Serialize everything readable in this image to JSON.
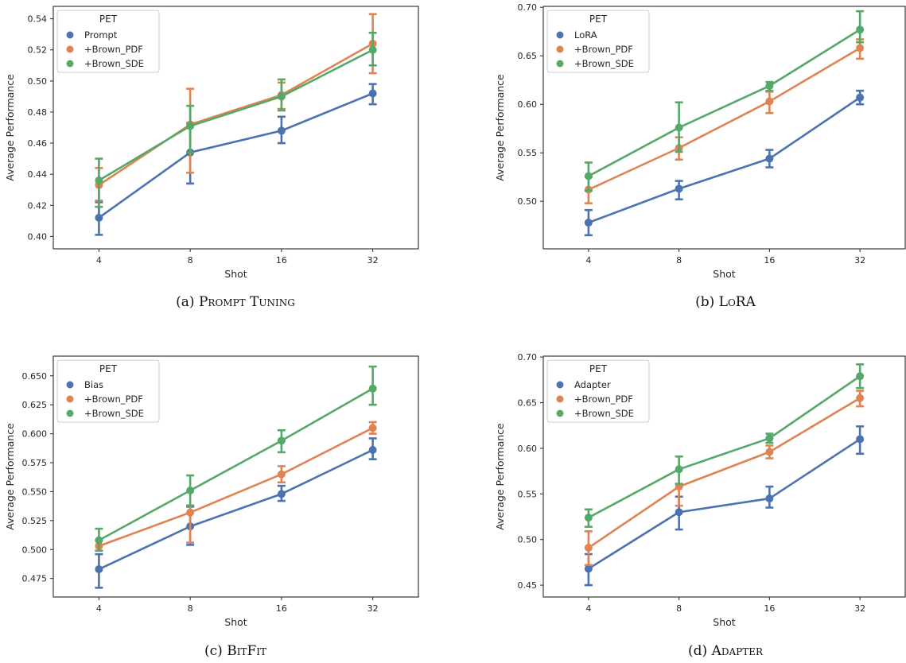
{
  "colors": {
    "Prompt": "#4c72b0",
    "+Brown_PDF": "#dd8452",
    "+Brown_SDE": "#55a868"
  },
  "chart_data": [
    {
      "type": "line",
      "caption": {
        "prefix": "(a) ",
        "name": "Prompt Tuning"
      },
      "categories": [
        "4",
        "8",
        "16",
        "32"
      ],
      "xlabel": "Shot",
      "ylabel": "Average Performance",
      "ylim": [
        0.392,
        0.548
      ],
      "yticks": [
        "0.40",
        "0.42",
        "0.44",
        "0.46",
        "0.48",
        "0.50",
        "0.52",
        "0.54"
      ],
      "legend": {
        "title": "PET",
        "position": "top-left"
      },
      "grid": false,
      "series": [
        {
          "name": "Prompt",
          "values": [
            0.412,
            0.454,
            0.468,
            0.492
          ],
          "err_low": [
            0.401,
            0.434,
            0.46,
            0.485
          ],
          "err_high": [
            0.422,
            0.473,
            0.477,
            0.498
          ]
        },
        {
          "name": "+Brown_PDF",
          "values": [
            0.433,
            0.472,
            0.491,
            0.524
          ],
          "err_low": [
            0.423,
            0.441,
            0.482,
            0.505
          ],
          "err_high": [
            0.444,
            0.495,
            0.499,
            0.543
          ]
        },
        {
          "name": "+Brown_SDE",
          "values": [
            0.436,
            0.471,
            0.49,
            0.52
          ],
          "err_low": [
            0.419,
            0.454,
            0.481,
            0.51
          ],
          "err_high": [
            0.45,
            0.484,
            0.501,
            0.531
          ]
        }
      ]
    },
    {
      "type": "line",
      "caption": {
        "prefix": "(b) ",
        "name": "LoRA"
      },
      "categories": [
        "4",
        "8",
        "16",
        "32"
      ],
      "xlabel": "Shot",
      "ylabel": "Average Performance",
      "ylim": [
        0.451,
        0.701
      ],
      "yticks": [
        "0.50",
        "0.55",
        "0.60",
        "0.65",
        "0.70"
      ],
      "legend": {
        "title": "PET",
        "position": "top-left"
      },
      "grid": false,
      "series": [
        {
          "name": "LoRA",
          "values": [
            0.478,
            0.513,
            0.544,
            0.607
          ],
          "err_low": [
            0.465,
            0.502,
            0.535,
            0.6
          ],
          "err_high": [
            0.491,
            0.521,
            0.553,
            0.614
          ]
        },
        {
          "name": "+Brown_PDF",
          "values": [
            0.512,
            0.555,
            0.603,
            0.658
          ],
          "err_low": [
            0.498,
            0.543,
            0.591,
            0.647
          ],
          "err_high": [
            0.525,
            0.566,
            0.613,
            0.667
          ]
        },
        {
          "name": "+Brown_SDE",
          "values": [
            0.526,
            0.576,
            0.619,
            0.677
          ],
          "err_low": [
            0.511,
            0.551,
            0.614,
            0.664
          ],
          "err_high": [
            0.54,
            0.602,
            0.623,
            0.696
          ]
        }
      ]
    },
    {
      "type": "line",
      "caption": {
        "prefix": "(c) ",
        "name": "BitFit"
      },
      "categories": [
        "4",
        "8",
        "16",
        "32"
      ],
      "xlabel": "Shot",
      "ylabel": "Average Performance",
      "ylim": [
        0.459,
        0.667
      ],
      "yticks": [
        "0.475",
        "0.500",
        "0.525",
        "0.550",
        "0.575",
        "0.600",
        "0.625",
        "0.650"
      ],
      "legend": {
        "title": "PET",
        "position": "top-left"
      },
      "grid": false,
      "series": [
        {
          "name": "Bias",
          "values": [
            0.483,
            0.52,
            0.548,
            0.586
          ],
          "err_low": [
            0.467,
            0.504,
            0.542,
            0.578
          ],
          "err_high": [
            0.496,
            0.537,
            0.555,
            0.596
          ]
        },
        {
          "name": "+Brown_PDF",
          "values": [
            0.503,
            0.532,
            0.565,
            0.605
          ],
          "err_low": [
            0.499,
            0.506,
            0.558,
            0.6
          ],
          "err_high": [
            0.508,
            0.538,
            0.572,
            0.61
          ]
        },
        {
          "name": "+Brown_SDE",
          "values": [
            0.508,
            0.551,
            0.594,
            0.639
          ],
          "err_low": [
            0.499,
            0.538,
            0.584,
            0.625
          ],
          "err_high": [
            0.518,
            0.564,
            0.603,
            0.658
          ]
        }
      ]
    },
    {
      "type": "line",
      "caption": {
        "prefix": "(d) ",
        "name": "Adapter"
      },
      "categories": [
        "4",
        "8",
        "16",
        "32"
      ],
      "xlabel": "Shot",
      "ylabel": "Average Performance",
      "ylim": [
        0.437,
        0.701
      ],
      "yticks": [
        "0.45",
        "0.50",
        "0.55",
        "0.60",
        "0.65",
        "0.70"
      ],
      "legend": {
        "title": "PET",
        "position": "top-left"
      },
      "grid": false,
      "series": [
        {
          "name": "Adapter",
          "values": [
            0.468,
            0.53,
            0.545,
            0.61
          ],
          "err_low": [
            0.45,
            0.511,
            0.535,
            0.594
          ],
          "err_high": [
            0.484,
            0.547,
            0.558,
            0.624
          ]
        },
        {
          "name": "+Brown_PDF",
          "values": [
            0.491,
            0.558,
            0.596,
            0.655
          ],
          "err_low": [
            0.472,
            0.537,
            0.589,
            0.646
          ],
          "err_high": [
            0.509,
            0.561,
            0.603,
            0.663
          ]
        },
        {
          "name": "+Brown_SDE",
          "values": [
            0.524,
            0.577,
            0.611,
            0.679
          ],
          "err_low": [
            0.514,
            0.561,
            0.606,
            0.666
          ],
          "err_high": [
            0.533,
            0.591,
            0.616,
            0.692
          ]
        }
      ]
    }
  ]
}
